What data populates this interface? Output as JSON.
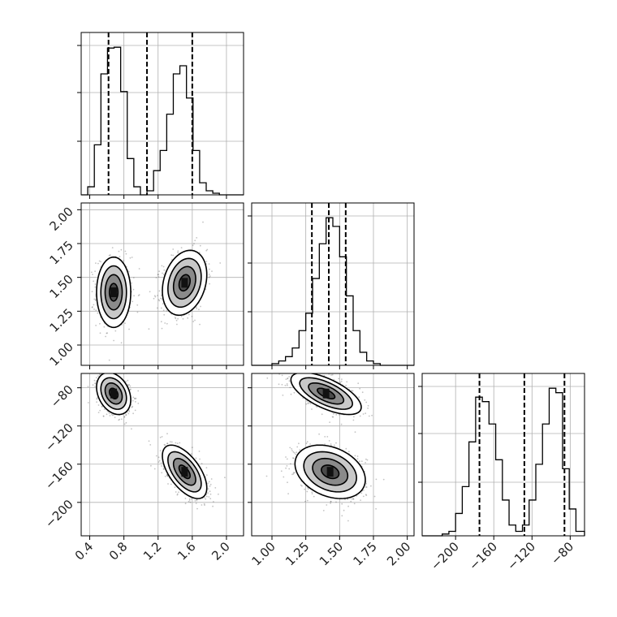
{
  "chart_data": {
    "type": "corner",
    "n_params": 3,
    "params": [
      {
        "index": 0,
        "range": [
          0.3,
          2.2
        ],
        "ticks": [
          0.4,
          0.8,
          1.2,
          1.6,
          2.0
        ],
        "tick_labels": [
          "0.4",
          "0.8",
          "1.2",
          "1.6",
          "2.0"
        ]
      },
      {
        "index": 1,
        "range": [
          0.85,
          2.05
        ],
        "ticks": [
          1.0,
          1.25,
          1.5,
          1.75,
          2.0
        ],
        "tick_labels": [
          "1.00",
          "1.25",
          "1.50",
          "1.75",
          "2.00"
        ]
      },
      {
        "index": 2,
        "range": [
          -235,
          -65
        ],
        "ticks": [
          -200,
          -160,
          -120,
          -80
        ],
        "tick_labels": [
          "−200",
          "−160",
          "−120",
          "−80"
        ]
      }
    ],
    "hist_1d": [
      {
        "param": 0,
        "bin_edges": [
          0.3,
          0.377,
          0.454,
          0.531,
          0.608,
          0.685,
          0.762,
          0.839,
          0.916,
          0.993,
          1.07,
          1.147,
          1.224,
          1.301,
          1.378,
          1.455,
          1.532,
          1.609,
          1.686,
          1.763,
          1.84,
          1.917,
          1.994,
          2.071,
          2.2
        ],
        "counts": [
          0,
          10,
          62,
          150,
          182,
          183,
          128,
          45,
          10,
          0,
          5,
          30,
          55,
          100,
          150,
          160,
          120,
          55,
          15,
          5,
          2,
          0,
          0,
          0
        ],
        "quantile_lines": [
          0.62,
          1.07,
          1.6
        ]
      },
      {
        "param": 1,
        "bin_edges": [
          0.85,
          0.9,
          0.95,
          1.0,
          1.05,
          1.1,
          1.15,
          1.2,
          1.25,
          1.3,
          1.35,
          1.4,
          1.45,
          1.5,
          1.55,
          1.6,
          1.65,
          1.7,
          1.75,
          1.8,
          1.85,
          1.9,
          1.95,
          2.0,
          2.05
        ],
        "counts": [
          0,
          0,
          0,
          2,
          5,
          10,
          20,
          40,
          60,
          100,
          140,
          170,
          160,
          125,
          80,
          40,
          15,
          5,
          2,
          0,
          0,
          0,
          0,
          0
        ],
        "quantile_lines": [
          1.295,
          1.42,
          1.545
        ]
      },
      {
        "param": 2,
        "bin_edges": [
          -235,
          -228,
          -221,
          -214,
          -207,
          -200,
          -193,
          -186,
          -179,
          -172,
          -165,
          -158,
          -151,
          -144,
          -137,
          -130,
          -123,
          -116,
          -109,
          -102,
          -95,
          -88,
          -81,
          -74,
          -65
        ],
        "counts": [
          0,
          0,
          0,
          2,
          5,
          25,
          55,
          105,
          155,
          150,
          125,
          85,
          40,
          12,
          5,
          12,
          40,
          80,
          125,
          165,
          160,
          75,
          30,
          5
        ],
        "quantile_lines": [
          -175,
          -128,
          -86
        ]
      }
    ],
    "scatter_2d": [
      {
        "x_param": 0,
        "y_param": 1,
        "clusters": [
          {
            "cx": 0.68,
            "cy": 1.39,
            "sx": 0.1,
            "sy": 0.13,
            "rho": 0.0
          },
          {
            "cx": 1.51,
            "cy": 1.46,
            "sx": 0.13,
            "sy": 0.12,
            "rho": 0.25
          }
        ]
      },
      {
        "x_param": 0,
        "y_param": 2,
        "clusters": [
          {
            "cx": 0.68,
            "cy": -86,
            "sx": 0.1,
            "sy": 11,
            "rho": -0.3
          },
          {
            "cx": 1.51,
            "cy": -168,
            "sx": 0.13,
            "sy": 14,
            "rho": -0.6
          }
        ]
      },
      {
        "x_param": 1,
        "y_param": 2,
        "clusters": [
          {
            "cx": 1.4,
            "cy": -86,
            "sx": 0.13,
            "sy": 11,
            "rho": -0.65
          },
          {
            "cx": 1.43,
            "cy": -168,
            "sx": 0.13,
            "sy": 14,
            "rho": -0.3
          }
        ]
      }
    ],
    "contour_levels_sigma": [
      0.5,
      1.0,
      1.5,
      2.0
    ],
    "grid": true
  }
}
